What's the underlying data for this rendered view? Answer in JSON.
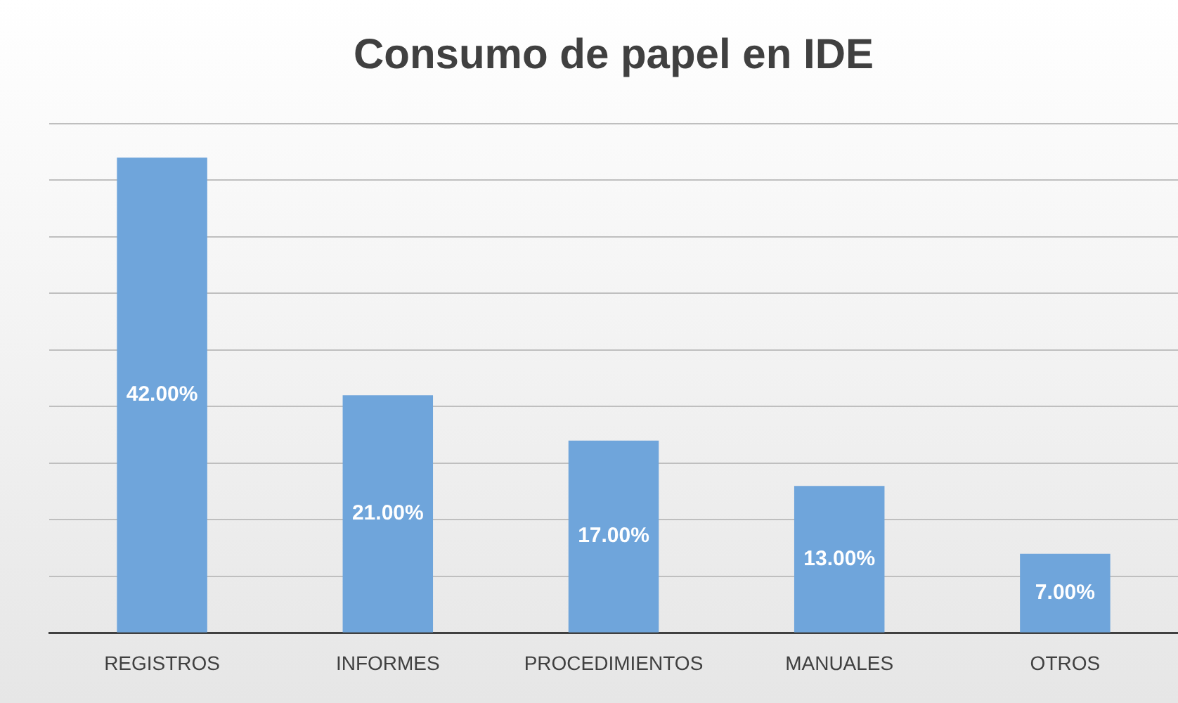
{
  "chart_data": {
    "type": "bar",
    "title": "Consumo de papel en IDE",
    "categories": [
      "REGISTROS",
      "INFORMES",
      "PROCEDIMIENTOS",
      "MANUALES",
      "OTROS"
    ],
    "values": [
      42,
      21,
      17,
      13,
      7
    ],
    "value_labels": [
      "42.00%",
      "21.00%",
      "17.00%",
      "13.00%",
      "7.00%"
    ],
    "color": "#6fa5db",
    "ylim": [
      0,
      45
    ],
    "yticks": [
      {
        "value": 0,
        "label": null
      },
      {
        "value": 5,
        "label": null
      },
      {
        "value": 10,
        "label": null
      },
      {
        "value": 15,
        "label": null
      },
      {
        "value": 20,
        "label": null
      },
      {
        "value": 25,
        "label": null
      },
      {
        "value": 30,
        "label": null
      },
      {
        "value": 35,
        "label": null
      },
      {
        "value": 40,
        "label": null
      },
      {
        "value": 45,
        "label": null
      }
    ],
    "grid": "y",
    "tick_labels": "x",
    "legend": false
  }
}
